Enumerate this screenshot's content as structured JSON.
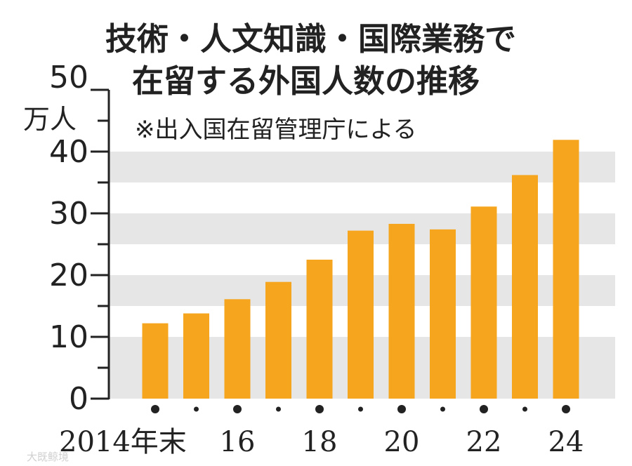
{
  "chart_data": {
    "type": "bar",
    "title": [
      "技術・人文知識・国際業務で",
      "在留する外国人数の推移"
    ],
    "note": "※出入国在留管理庁による",
    "ylabel_lines": [
      "50",
      "万人"
    ],
    "ylim": [
      0,
      50
    ],
    "yticks": [
      "0",
      "10",
      "20",
      "30",
      "40"
    ],
    "grid": "alternating horizontal bands",
    "categories": [
      "2014",
      "2015",
      "2016",
      "2017",
      "2018",
      "2019",
      "2020",
      "2021",
      "2022",
      "2023",
      "2024"
    ],
    "values": [
      12.2,
      13.8,
      16.1,
      18.9,
      22.5,
      27.2,
      28.3,
      27.4,
      31.1,
      36.2,
      41.9
    ],
    "x_tick_labels": [
      "2014年末",
      "16",
      "18",
      "20",
      "22",
      "24"
    ],
    "bar_color": "#f5a61e",
    "band_color": "#e6e6e6"
  },
  "watermark": "大既鲸境"
}
